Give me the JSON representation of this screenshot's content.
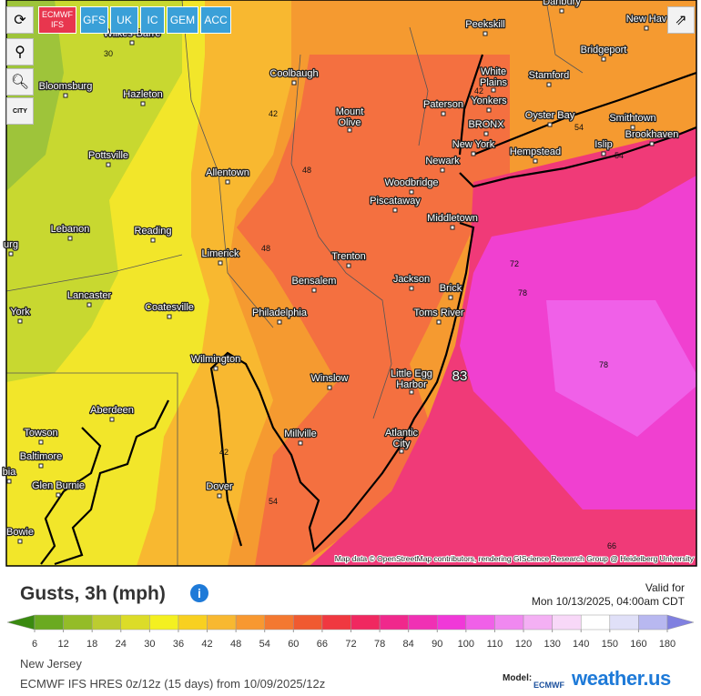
{
  "toolbar": {
    "buttons": [
      "ECMWF IFS",
      "GFS",
      "UK",
      "IC",
      "GEM",
      "ACC"
    ],
    "city_button": "CITY"
  },
  "map": {
    "cities": [
      "Wilkes-Barre",
      "Bloomsburg",
      "Hazleton",
      "Pottsville",
      "urg",
      "Lebanon",
      "Reading",
      "Lancaster",
      "Coatesville",
      "York",
      "Allentown",
      "Limerick",
      "Philadelphia",
      "Wilmington",
      "Coolbaugh",
      "Mount Olive",
      "Paterson",
      "Newark",
      "New York",
      "BRONX",
      "Yonkers",
      "White Plains",
      "Peekskill",
      "Danbury",
      "New Hav",
      "Bridgeport",
      "Stamford",
      "Oyster Bay",
      "Smithtown",
      "Brookhaven",
      "Islip",
      "Hempstead",
      "Woodbridge",
      "Piscataway",
      "Middletown",
      "Trenton",
      "Bensalem",
      "Jackson",
      "Brick",
      "Toms River",
      "Little Egg Harbor",
      "Winslow",
      "Millville",
      "Atlantic City",
      "Dover",
      "Aberdeen",
      "Towson",
      "Baltimore",
      "bia",
      "Glen Burnie",
      "Bowie"
    ],
    "contour_labels": [
      30,
      42,
      48,
      48,
      42,
      54,
      54,
      54,
      42,
      72,
      78,
      78,
      66,
      83
    ],
    "attribution": "Map data © OpenStreetMap contributors, rendering GIScience Research Group @ Heidelberg University"
  },
  "legend": {
    "title": "Gusts, 3h (mph)",
    "valid_label": "Valid for",
    "valid_time": "Mon 10/13/2025, 04:00am CDT",
    "ticks": [
      6,
      12,
      18,
      24,
      30,
      36,
      42,
      48,
      54,
      60,
      66,
      72,
      78,
      84,
      90,
      100,
      110,
      120,
      130,
      140,
      150,
      160,
      180
    ],
    "colors": [
      "#3a8a10",
      "#6aaa20",
      "#94bc28",
      "#bccc30",
      "#dcdc28",
      "#f4f020",
      "#f8d020",
      "#f8b830",
      "#f89830",
      "#f47830",
      "#f05a30",
      "#f03840",
      "#f02860",
      "#f0288c",
      "#f030b4",
      "#f038d8",
      "#f060e8",
      "#f088f0",
      "#f4b0f4",
      "#f8d8f8",
      "#ffffff",
      "#e0e0f8",
      "#b8b8f0",
      "#8080e0"
    ]
  },
  "footer": {
    "region": "New Jersey",
    "model_run": "ECMWF IFS HRES 0z/12z (15 days) from 10/09/2025/12z",
    "model_label": "Model:",
    "model_logo": "ECMWF",
    "brand": "weather.us"
  }
}
